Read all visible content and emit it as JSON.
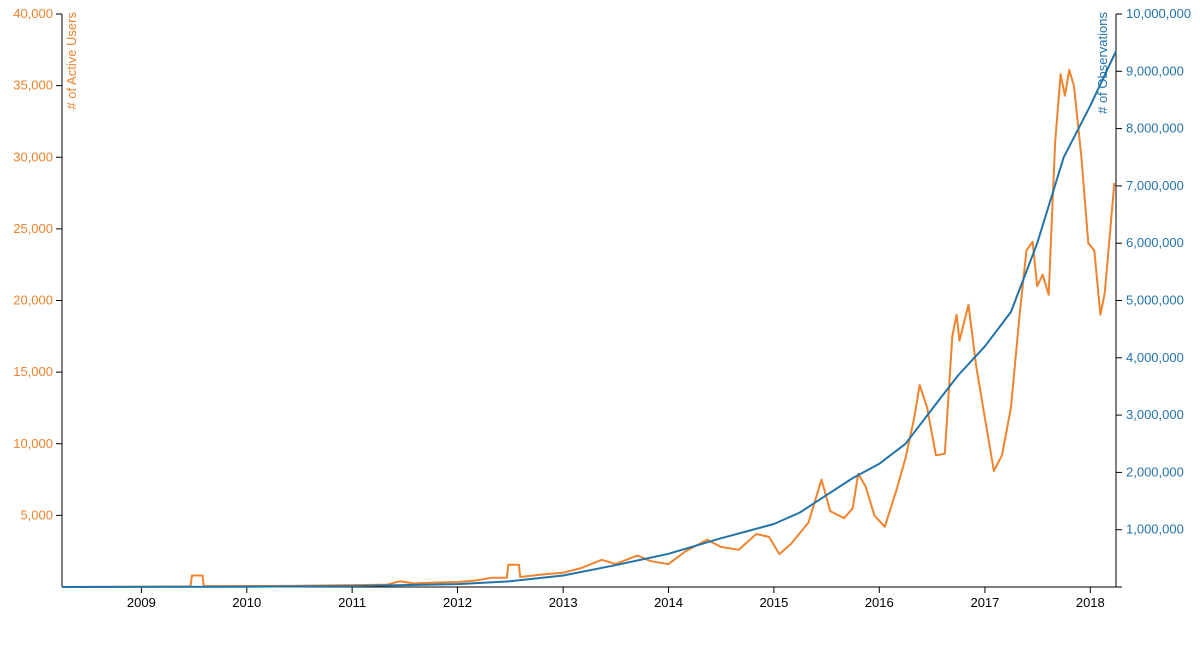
{
  "chart_data": {
    "type": "line",
    "x_axis": {
      "type": "date",
      "range": [
        "2008-04-01",
        "2018-03-31"
      ],
      "ticks": [
        "2009",
        "2010",
        "2011",
        "2012",
        "2013",
        "2014",
        "2015",
        "2016",
        "2017",
        "2018"
      ]
    },
    "y_left": {
      "label": "# of Active Users",
      "range": [
        0,
        40000
      ],
      "ticks": [
        "5,000",
        "10,000",
        "15,000",
        "20,000",
        "25,000",
        "30,000",
        "35,000",
        "40,000"
      ],
      "color": "#f0832e"
    },
    "y_right": {
      "label": "# of Observations",
      "range": [
        0,
        10000000
      ],
      "ticks": [
        "1,000,000",
        "2,000,000",
        "3,000,000",
        "4,000,000",
        "5,000,000",
        "6,000,000",
        "7,000,000",
        "8,000,000",
        "9,000,000",
        "10,000,000"
      ],
      "color": "#2273a8"
    },
    "grid": false,
    "legend": "none",
    "series": [
      {
        "axis": "left",
        "color": "#f0832e",
        "points": [
          [
            "2008-04-01",
            0
          ],
          [
            "2009-06-20",
            40
          ],
          [
            "2009-06-25",
            800
          ],
          [
            "2009-08-01",
            800
          ],
          [
            "2009-08-05",
            60
          ],
          [
            "2010-06-01",
            80
          ],
          [
            "2011-01-01",
            130
          ],
          [
            "2011-05-01",
            160
          ],
          [
            "2011-06-15",
            400
          ],
          [
            "2011-08-01",
            250
          ],
          [
            "2011-10-01",
            300
          ],
          [
            "2012-01-01",
            350
          ],
          [
            "2012-03-01",
            450
          ],
          [
            "2012-05-01",
            650
          ],
          [
            "2012-06-20",
            650
          ],
          [
            "2012-06-25",
            1550
          ],
          [
            "2012-08-01",
            1550
          ],
          [
            "2012-08-05",
            700
          ],
          [
            "2012-11-01",
            900
          ],
          [
            "2013-01-01",
            1000
          ],
          [
            "2013-03-01",
            1300
          ],
          [
            "2013-05-15",
            1900
          ],
          [
            "2013-07-01",
            1600
          ],
          [
            "2013-09-15",
            2200
          ],
          [
            "2013-11-01",
            1800
          ],
          [
            "2014-01-01",
            1600
          ],
          [
            "2014-03-01",
            2500
          ],
          [
            "2014-05-15",
            3300
          ],
          [
            "2014-07-01",
            2800
          ],
          [
            "2014-09-01",
            2600
          ],
          [
            "2014-11-01",
            3700
          ],
          [
            "2014-12-15",
            3500
          ],
          [
            "2015-01-20",
            2300
          ],
          [
            "2015-03-01",
            3000
          ],
          [
            "2015-05-01",
            4500
          ],
          [
            "2015-06-15",
            7500
          ],
          [
            "2015-07-15",
            5300
          ],
          [
            "2015-09-01",
            4800
          ],
          [
            "2015-10-01",
            5500
          ],
          [
            "2015-10-20",
            7900
          ],
          [
            "2015-11-15",
            7000
          ],
          [
            "2015-12-15",
            5000
          ],
          [
            "2016-01-20",
            4200
          ],
          [
            "2016-03-01",
            6800
          ],
          [
            "2016-04-01",
            9000
          ],
          [
            "2016-05-01",
            11800
          ],
          [
            "2016-05-20",
            14100
          ],
          [
            "2016-06-15",
            12500
          ],
          [
            "2016-07-15",
            9200
          ],
          [
            "2016-08-15",
            9300
          ],
          [
            "2016-09-10",
            17500
          ],
          [
            "2016-09-25",
            19000
          ],
          [
            "2016-10-05",
            17200
          ],
          [
            "2016-11-05",
            19700
          ],
          [
            "2016-12-01",
            15500
          ],
          [
            "2017-01-01",
            11800
          ],
          [
            "2017-02-01",
            8100
          ],
          [
            "2017-03-01",
            9200
          ],
          [
            "2017-04-01",
            12500
          ],
          [
            "2017-05-01",
            19000
          ],
          [
            "2017-05-25",
            23500
          ],
          [
            "2017-06-15",
            24100
          ],
          [
            "2017-07-01",
            21000
          ],
          [
            "2017-07-20",
            21800
          ],
          [
            "2017-08-10",
            20400
          ],
          [
            "2017-09-01",
            31000
          ],
          [
            "2017-09-20",
            35800
          ],
          [
            "2017-10-05",
            34300
          ],
          [
            "2017-10-20",
            36100
          ],
          [
            "2017-11-05",
            35000
          ],
          [
            "2017-12-01",
            30000
          ],
          [
            "2017-12-25",
            24000
          ],
          [
            "2018-01-15",
            23500
          ],
          [
            "2018-02-05",
            19000
          ],
          [
            "2018-02-20",
            20500
          ],
          [
            "2018-03-05",
            23500
          ],
          [
            "2018-03-25",
            28200
          ]
        ]
      },
      {
        "axis": "right",
        "color": "#2273a8",
        "points": [
          [
            "2008-04-01",
            0
          ],
          [
            "2010-01-01",
            6000
          ],
          [
            "2011-01-01",
            15000
          ],
          [
            "2012-01-01",
            50000
          ],
          [
            "2012-07-01",
            100000
          ],
          [
            "2013-01-01",
            200000
          ],
          [
            "2013-07-01",
            380000
          ],
          [
            "2014-01-01",
            580000
          ],
          [
            "2014-07-01",
            850000
          ],
          [
            "2015-01-01",
            1100000
          ],
          [
            "2015-04-01",
            1300000
          ],
          [
            "2015-07-01",
            1600000
          ],
          [
            "2015-10-01",
            1900000
          ],
          [
            "2016-01-01",
            2150000
          ],
          [
            "2016-04-01",
            2500000
          ],
          [
            "2016-07-01",
            3100000
          ],
          [
            "2016-10-01",
            3700000
          ],
          [
            "2017-01-01",
            4200000
          ],
          [
            "2017-04-01",
            4800000
          ],
          [
            "2017-07-01",
            6000000
          ],
          [
            "2017-10-01",
            7500000
          ],
          [
            "2018-01-01",
            8400000
          ],
          [
            "2018-03-31",
            9350000
          ]
        ]
      }
    ]
  }
}
